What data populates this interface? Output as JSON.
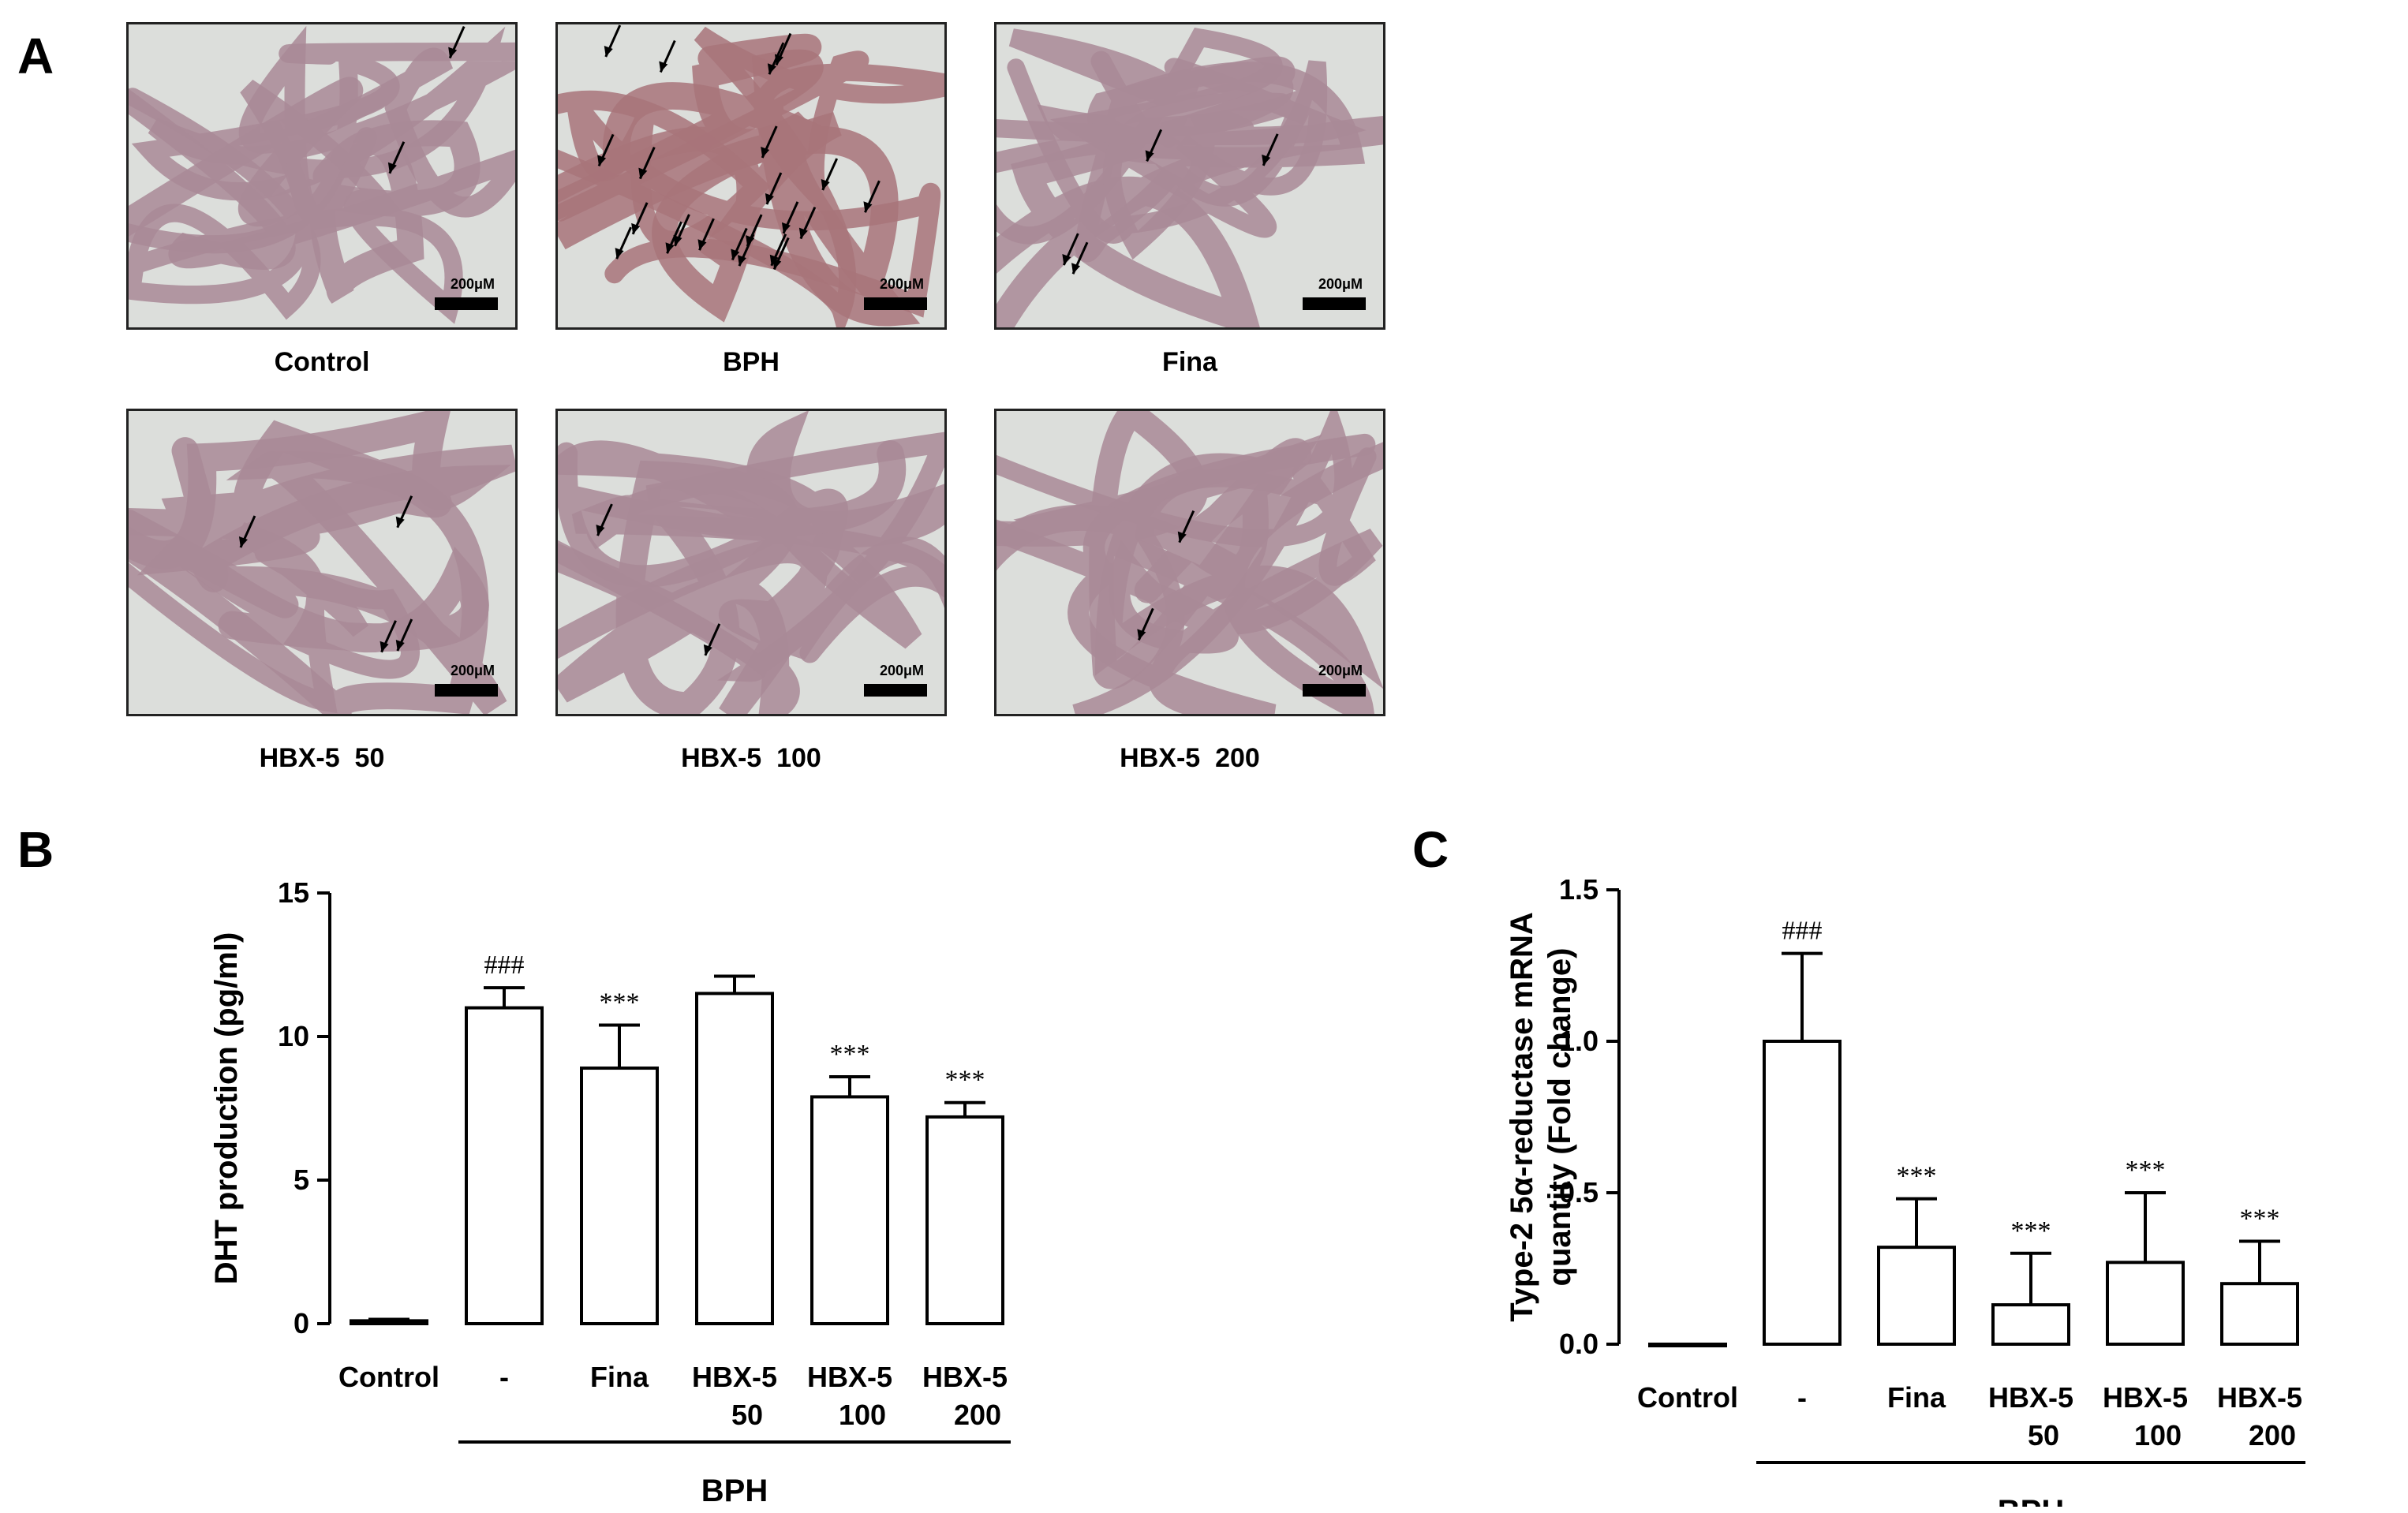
{
  "panels": {
    "a": "A",
    "b": "B",
    "c": "C"
  },
  "scale_label": "200μM",
  "micrographs": [
    {
      "label": "Control",
      "arrows": 2
    },
    {
      "label": "BPH",
      "arrows": 22
    },
    {
      "label": "Fina",
      "arrows": 4
    },
    {
      "label": "HBX-5  50",
      "arrows": 4
    },
    {
      "label": "HBX-5  100",
      "arrows": 2
    },
    {
      "label": "HBX-5  200",
      "arrows": 2
    }
  ],
  "chart_data": [
    {
      "type": "bar",
      "panel": "B",
      "ylabel": "DHT production (pg/ml)",
      "ylim": [
        0,
        15
      ],
      "yticks": [
        "0",
        "5",
        "10",
        "15"
      ],
      "categories": [
        {
          "line1": "Control",
          "line2": ""
        },
        {
          "line1": "-",
          "line2": ""
        },
        {
          "line1": "Fina",
          "line2": ""
        },
        {
          "line1": "HBX-5",
          "line2": "50"
        },
        {
          "line1": "HBX-5",
          "line2": "100"
        },
        {
          "line1": "HBX-5",
          "line2": "200"
        }
      ],
      "values": [
        0.1,
        11.0,
        8.9,
        11.5,
        7.9,
        7.2
      ],
      "errors": [
        0.05,
        0.7,
        1.5,
        0.6,
        0.7,
        0.5
      ],
      "annotations": [
        "",
        "###",
        "***",
        "",
        "***",
        "***"
      ],
      "group_label": "BPH",
      "group_span": [
        1,
        5
      ]
    },
    {
      "type": "bar",
      "panel": "C",
      "ylabel_lines": [
        "Type-2 5α-reductase mRNA",
        "quantity (Fold change)"
      ],
      "ylim": [
        0,
        1.5
      ],
      "yticks": [
        "0.0",
        "0.5",
        "1.0",
        "1.5"
      ],
      "categories": [
        {
          "line1": "Control",
          "line2": ""
        },
        {
          "line1": "-",
          "line2": ""
        },
        {
          "line1": "Fina",
          "line2": ""
        },
        {
          "line1": "HBX-5",
          "line2": "50"
        },
        {
          "line1": "HBX-5",
          "line2": "100"
        },
        {
          "line1": "HBX-5",
          "line2": "200"
        }
      ],
      "values": [
        0.0,
        1.0,
        0.32,
        0.13,
        0.27,
        0.2
      ],
      "errors": [
        0.0,
        0.29,
        0.16,
        0.17,
        0.23,
        0.14
      ],
      "annotations": [
        "",
        "###",
        "***",
        "***",
        "***",
        "***"
      ],
      "group_label": "BPH",
      "group_span": [
        1,
        5
      ]
    }
  ]
}
